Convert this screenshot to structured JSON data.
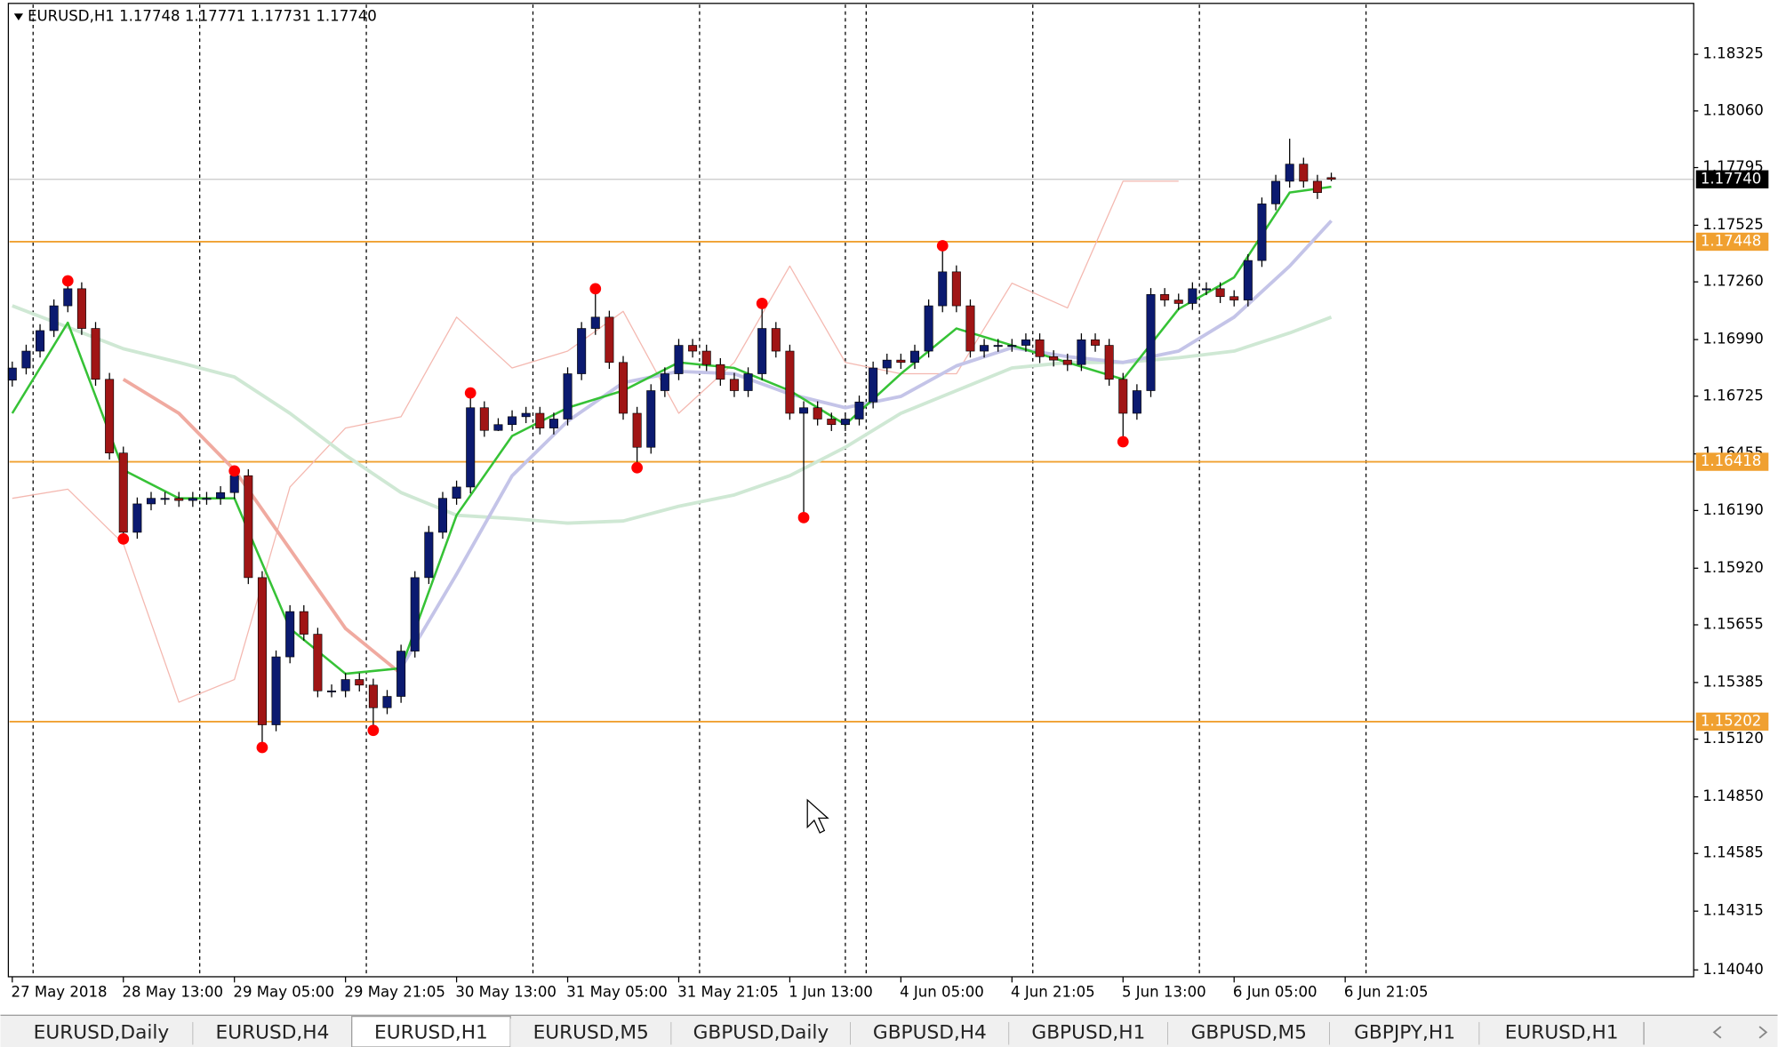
{
  "chart_data": {
    "type": "candlestick",
    "header": "EURUSD,H1  1.17748 1.17771 1.17731 1.17740",
    "xlim": [
      -0.2,
      121.1
    ],
    "ylim": [
      1.14008,
      1.18558
    ],
    "yticks": [
      1.18325,
      {
        "value": 1.1806,
        "label": "1.18060"
      },
      1.17795,
      1.17525,
      {
        "value": 1.1726,
        "label": "1.17260"
      },
      {
        "value": 1.1699,
        "label": "1.16990"
      },
      1.16725,
      1.16455,
      {
        "value": 1.1619,
        "label": "1.16190"
      },
      {
        "value": 1.1592,
        "label": "1.15920"
      },
      1.15655,
      1.15385,
      {
        "value": 1.1512,
        "label": "1.15120"
      },
      {
        "value": 1.1485,
        "label": "1.14850"
      },
      1.14585,
      1.14315,
      {
        "value": 1.1404,
        "label": "1.14040"
      }
    ],
    "xticks": [
      {
        "value": 0,
        "label": "27 May 2018"
      },
      {
        "value": 8,
        "label": "28 May 13:00"
      },
      {
        "value": 16,
        "label": "29 May 05:00"
      },
      {
        "value": 24,
        "label": "29 May 21:05"
      },
      {
        "value": 32,
        "label": "30 May 13:00"
      },
      {
        "value": 40,
        "label": "31 May 05:00"
      },
      {
        "value": 48,
        "label": "31 May 21:05"
      },
      {
        "value": 56,
        "label": "1 Jun 13:00"
      },
      {
        "value": 64,
        "label": "4 Jun 05:00"
      },
      {
        "value": 72,
        "label": "4 Jun 21:05"
      },
      {
        "value": 80,
        "label": "5 Jun 13:00"
      },
      {
        "value": 88,
        "label": "6 Jun 05:00"
      },
      {
        "value": 96,
        "label": "6 Jun 21:05"
      }
    ],
    "period_separators": [
      1.5,
      13.5,
      25.5,
      37.5,
      49.5,
      60,
      61.5,
      73.5,
      85.5,
      97.5
    ],
    "bull_color": "#0b1a70",
    "bear_color": "#a01515",
    "candles": {
      "open": [
        1.168,
        1.16857,
        1.16936,
        1.17032,
        1.17148,
        1.17228,
        1.17042,
        1.16804,
        1.16459,
        1.16088,
        1.16221,
        1.16247,
        1.16247,
        1.16237,
        1.16247,
        1.16247,
        1.16274,
        1.16353,
        1.15876,
        1.15187,
        1.15505,
        1.15717,
        1.15611,
        1.15346,
        1.15346,
        1.15399,
        1.15373,
        1.15267,
        1.1532,
        1.15532,
        1.15876,
        1.16088,
        1.16247,
        1.163,
        1.16671,
        1.16565,
        1.16592,
        1.16629,
        1.16645,
        1.16576,
        1.16618,
        1.1683,
        1.17042,
        1.17095,
        1.16883,
        1.16645,
        1.16486,
        1.16751,
        1.1683,
        1.16963,
        1.16936,
        1.16873,
        1.16804,
        1.16751,
        1.1683,
        1.17042,
        1.16936,
        1.16645,
        1.16671,
        1.16618,
        1.16592,
        1.16618,
        1.16698,
        1.16857,
        1.16894,
        1.16883,
        1.16936,
        1.17148,
        1.17307,
        1.17148,
        1.16936,
        1.16963,
        1.16963,
        1.16963,
        1.16989,
        1.1691,
        1.16894,
        1.16873,
        1.16989,
        1.16963,
        1.16804,
        1.16645,
        1.16751,
        1.17201,
        1.17175,
        1.17159,
        1.17228,
        1.17228,
        1.17191,
        1.17175,
        1.1736,
        1.17625,
        1.17731,
        1.17811,
        1.17731,
        1.17748
      ],
      "high": [
        1.16887,
        1.16966,
        1.17062,
        1.17178,
        1.17275,
        1.17258,
        1.17072,
        1.16834,
        1.16489,
        1.16251,
        1.16277,
        1.16277,
        1.16277,
        1.16277,
        1.16277,
        1.16304,
        1.16383,
        1.16383,
        1.15906,
        1.15535,
        1.15747,
        1.15747,
        1.15641,
        1.15376,
        1.15429,
        1.15429,
        1.15403,
        1.1535,
        1.15562,
        1.15906,
        1.16118,
        1.16277,
        1.1633,
        1.1673,
        1.16701,
        1.16622,
        1.16659,
        1.16675,
        1.16675,
        1.16648,
        1.1686,
        1.17072,
        1.1724,
        1.17125,
        1.16913,
        1.16675,
        1.16781,
        1.1686,
        1.16993,
        1.16993,
        1.16966,
        1.16903,
        1.16834,
        1.1686,
        1.1716,
        1.17072,
        1.16966,
        1.16701,
        1.16701,
        1.16648,
        1.16648,
        1.16728,
        1.16887,
        1.16924,
        1.16924,
        1.16966,
        1.17178,
        1.1743,
        1.17337,
        1.17178,
        1.16993,
        1.16993,
        1.16993,
        1.17019,
        1.17019,
        1.1694,
        1.16924,
        1.17019,
        1.17019,
        1.16993,
        1.16834,
        1.16781,
        1.17231,
        1.17231,
        1.17205,
        1.17258,
        1.17258,
        1.17258,
        1.17221,
        1.1739,
        1.17655,
        1.17761,
        1.1793,
        1.17841,
        1.17761,
        1.17771
      ],
      "low": [
        1.1677,
        1.16827,
        1.16906,
        1.17002,
        1.17118,
        1.17012,
        1.16774,
        1.16429,
        1.1605,
        1.16058,
        1.16191,
        1.16217,
        1.16207,
        1.16207,
        1.16217,
        1.16217,
        1.16244,
        1.15846,
        1.15081,
        1.15157,
        1.15475,
        1.15581,
        1.15316,
        1.15316,
        1.15316,
        1.15343,
        1.15161,
        1.15237,
        1.1529,
        1.15502,
        1.15846,
        1.16058,
        1.16217,
        1.1627,
        1.16535,
        1.16562,
        1.16562,
        1.16599,
        1.16546,
        1.16546,
        1.16588,
        1.168,
        1.17012,
        1.16853,
        1.16615,
        1.16406,
        1.16456,
        1.16721,
        1.168,
        1.16906,
        1.16843,
        1.16774,
        1.16721,
        1.16721,
        1.168,
        1.16906,
        1.16615,
        1.16157,
        1.16588,
        1.16562,
        1.16562,
        1.16588,
        1.16668,
        1.16827,
        1.16853,
        1.16853,
        1.16906,
        1.17118,
        1.17118,
        1.16906,
        1.16906,
        1.16933,
        1.16933,
        1.16933,
        1.1688,
        1.16864,
        1.16843,
        1.16843,
        1.16933,
        1.16774,
        1.16512,
        1.16615,
        1.16721,
        1.17145,
        1.17129,
        1.17129,
        1.17198,
        1.17161,
        1.17145,
        1.17145,
        1.1733,
        1.17595,
        1.17701,
        1.17701,
        1.17648,
        1.17731
      ],
      "close": [
        1.16857,
        1.16936,
        1.17032,
        1.17148,
        1.17228,
        1.17042,
        1.16804,
        1.16459,
        1.16088,
        1.16221,
        1.16247,
        1.16247,
        1.16237,
        1.16247,
        1.16247,
        1.16274,
        1.16353,
        1.15876,
        1.15187,
        1.15505,
        1.15717,
        1.15611,
        1.15346,
        1.15346,
        1.15399,
        1.15373,
        1.15267,
        1.1532,
        1.15532,
        1.15876,
        1.16088,
        1.16247,
        1.163,
        1.16671,
        1.16565,
        1.16592,
        1.16629,
        1.16645,
        1.16576,
        1.16618,
        1.1683,
        1.17042,
        1.17095,
        1.16883,
        1.16645,
        1.16486,
        1.16751,
        1.1683,
        1.16963,
        1.16936,
        1.16873,
        1.16804,
        1.16751,
        1.1683,
        1.17042,
        1.16936,
        1.16645,
        1.16671,
        1.16618,
        1.16592,
        1.16618,
        1.16698,
        1.16857,
        1.16894,
        1.16883,
        1.16936,
        1.17148,
        1.17307,
        1.17148,
        1.16936,
        1.16963,
        1.16963,
        1.16963,
        1.16989,
        1.1691,
        1.16894,
        1.16873,
        1.16989,
        1.16963,
        1.16804,
        1.16645,
        1.16751,
        1.17201,
        1.17175,
        1.17159,
        1.17228,
        1.17228,
        1.17191,
        1.17175,
        1.1736,
        1.17625,
        1.17731,
        1.17811,
        1.17731,
        1.17678,
        1.1774
      ]
    },
    "lines": [
      {
        "color": "#f4b8b0",
        "width": 1,
        "x": [
          0,
          4,
          8,
          12,
          16,
          20,
          24,
          28,
          32,
          36,
          40,
          44,
          48,
          52,
          56,
          60,
          64,
          68,
          72,
          76,
          80,
          84
        ],
        "values": [
          1.16247,
          1.1629,
          1.16035,
          1.15293,
          1.15399,
          1.163,
          1.16576,
          1.16629,
          1.17095,
          1.16857,
          1.16936,
          1.17122,
          1.16645,
          1.16883,
          1.17334,
          1.16883,
          1.1683,
          1.1683,
          1.17254,
          1.17138,
          1.17731,
          1.17731
        ]
      },
      {
        "color": "#cfe8d4",
        "width": 3,
        "x": [
          0,
          4,
          8,
          12,
          16,
          20,
          24,
          28,
          32,
          36,
          40,
          44,
          48,
          52,
          56,
          60,
          64,
          68,
          72,
          76,
          80,
          84,
          88,
          92,
          95
        ],
        "values": [
          1.17148,
          1.17048,
          1.16947,
          1.16883,
          1.16815,
          1.16645,
          1.16449,
          1.16274,
          1.16168,
          1.16152,
          1.16131,
          1.16141,
          1.1621,
          1.16263,
          1.16353,
          1.16486,
          1.16645,
          1.16751,
          1.16857,
          1.16883,
          1.16883,
          1.16905,
          1.16936,
          1.17021,
          1.17095
        ]
      },
      {
        "color": "#f0aaa0",
        "width": 3,
        "x": [
          8,
          12,
          16,
          20,
          24,
          28
        ],
        "values": [
          1.16804,
          1.16645,
          1.1638,
          1.16009,
          1.15638,
          1.15426
        ]
      },
      {
        "color": "#c4c4e8",
        "width": 3,
        "x": [
          28,
          32,
          36,
          40,
          44,
          48,
          52,
          56,
          60,
          64,
          68,
          72,
          76,
          80,
          84,
          88,
          92,
          95
        ],
        "values": [
          1.15452,
          1.15892,
          1.16353,
          1.16608,
          1.16788,
          1.16841,
          1.1683,
          1.16735,
          1.16671,
          1.16724,
          1.16867,
          1.16952,
          1.1691,
          1.16883,
          1.16936,
          1.17095,
          1.17334,
          1.17546
        ]
      },
      {
        "color": "#36c236",
        "width": 2,
        "x": [
          0,
          4,
          8,
          12,
          16,
          20,
          24,
          28,
          32,
          36,
          40,
          44,
          48,
          52,
          56,
          60,
          64,
          68,
          72,
          76,
          80,
          84,
          88,
          92,
          95
        ],
        "values": [
          1.16645,
          1.17069,
          1.1638,
          1.16247,
          1.16247,
          1.15638,
          1.15426,
          1.15452,
          1.16168,
          1.16539,
          1.16671,
          1.16751,
          1.16883,
          1.16857,
          1.16751,
          1.16592,
          1.1683,
          1.17042,
          1.16963,
          1.16883,
          1.16804,
          1.17133,
          1.17281,
          1.17678,
          1.17705
        ]
      }
    ],
    "fractals": {
      "color": "#ff0000",
      "x": [
        4,
        16,
        33,
        42,
        54,
        67,
        8,
        18,
        26,
        45,
        57,
        80
      ],
      "y": [
        1.17265,
        1.16375,
        1.1674,
        1.17228,
        1.17159,
        1.17429,
        1.16057,
        1.15081,
        1.15161,
        1.1639,
        1.16157,
        1.16512
      ]
    },
    "levels": {
      "color": "#f0a030",
      "values": [
        1.17448,
        1.16418,
        1.15202
      ]
    },
    "current_price": {
      "value": 1.1774,
      "label": "1.17740"
    },
    "tabs": [
      "EURUSD,Daily",
      "EURUSD,H4",
      "EURUSD,H1",
      "EURUSD,M5",
      "GBPUSD,Daily",
      "GBPUSD,H4",
      "GBPUSD,H1",
      "GBPUSD,M5",
      "GBPJPY,H1",
      "EURUSD,H1"
    ],
    "active_tab": 2
  }
}
